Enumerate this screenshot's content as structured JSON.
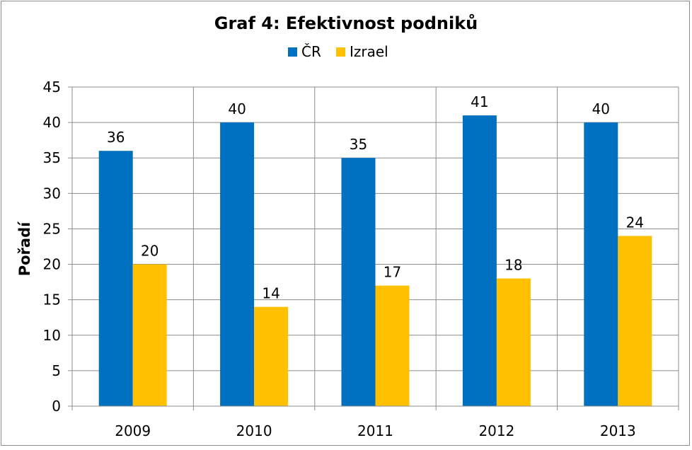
{
  "chart_data": {
    "type": "bar",
    "title": "Graf 4: Efektivnost podniků",
    "xlabel": "",
    "ylabel": "Pořadí",
    "ylim": [
      0,
      45
    ],
    "y_ticks": [
      0,
      5,
      10,
      15,
      20,
      25,
      30,
      35,
      40,
      45
    ],
    "categories": [
      "2009",
      "2010",
      "2011",
      "2012",
      "2013"
    ],
    "series": [
      {
        "name": "ČR",
        "color": "#0070C0",
        "values": [
          36,
          40,
          35,
          41,
          40
        ]
      },
      {
        "name": "Izrael",
        "color": "#FFC000",
        "values": [
          20,
          14,
          17,
          18,
          24
        ]
      }
    ],
    "legend_position": "top",
    "grid": true,
    "data_labels": true
  }
}
